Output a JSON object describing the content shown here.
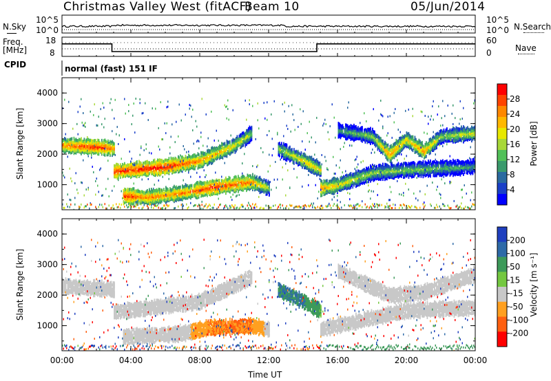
{
  "header": {
    "station": "Christmas Valley West (fitACF)",
    "beam": "Beam 10",
    "date": "05/Jun/2014"
  },
  "nsky_panel": {
    "label": "N.Sky",
    "left_ticks": [
      "10^5",
      "10^0"
    ],
    "right_label": "N.Search",
    "right_ticks": [
      "10^5",
      "10^0"
    ]
  },
  "freq_panel": {
    "label_line1": "Freq.",
    "label_line2": "[MHz]",
    "left_ticks": [
      "18",
      "8"
    ],
    "right_label": "Nave",
    "right_ticks": [
      "60",
      "0"
    ]
  },
  "cpid": {
    "label": "CPID",
    "value": "normal (fast) 151 IF"
  },
  "x_axis": {
    "title": "Time UT",
    "ticks": [
      "00:00",
      "04:00",
      "08:00",
      "12:00",
      "16:00",
      "20:00",
      "00:00"
    ],
    "tick_hours": [
      0,
      4,
      8,
      12,
      16,
      20,
      24
    ]
  },
  "power_panel": {
    "ylabel": "Slant Range [km]",
    "yticks": [
      "1000",
      "2000",
      "3000",
      "4000"
    ],
    "ytick_values": [
      1000,
      2000,
      3000,
      4000
    ],
    "colorbar_label": "Power [dB]",
    "colorbar_ticks": [
      "28",
      "24",
      "20",
      "16",
      "12",
      "8",
      "4"
    ],
    "colorbar_colors": [
      "#ff0000",
      "#ff4400",
      "#ff8800",
      "#ffb800",
      "#e8e800",
      "#a8d838",
      "#52c058",
      "#3a9a6c",
      "#2a6aa0",
      "#1a40c8",
      "#0000ff"
    ]
  },
  "velocity_panel": {
    "ylabel": "Slant Range [km]",
    "yticks": [
      "1000",
      "2000",
      "3000",
      "4000"
    ],
    "ytick_values": [
      1000,
      2000,
      3000,
      4000
    ],
    "colorbar_label": "Velocity [m s⁻¹]",
    "colorbar_ticks": [
      "200",
      "100",
      "50",
      "15",
      "-15",
      "-50",
      "-100",
      "-200"
    ],
    "colorbar_colors": [
      "#1f3fbf",
      "#2e6aa8",
      "#3d9a5a",
      "#74c840",
      "#c8c8c8",
      "#ffa020",
      "#ff6010",
      "#ff0000"
    ]
  },
  "chart_data": {
    "type": "heatmap",
    "x_range_hours": [
      0,
      24
    ],
    "y_range_km": [
      180,
      4500
    ],
    "freq_mhz": [
      [
        0,
        14.5
      ],
      [
        2.9,
        14.5
      ],
      [
        2.9,
        10.5
      ],
      [
        14.8,
        10.5
      ],
      [
        14.8,
        14.5
      ],
      [
        24,
        14.5
      ]
    ],
    "power_bands": [
      {
        "name": "band_a",
        "points": [
          [
            0,
            2300,
            24
          ],
          [
            2,
            2250,
            28
          ],
          [
            3,
            2200,
            24
          ]
        ]
      },
      {
        "name": "band_b",
        "points": [
          [
            3,
            1450,
            28
          ],
          [
            6,
            1600,
            28
          ],
          [
            8,
            1800,
            24
          ],
          [
            10,
            2300,
            20
          ],
          [
            11,
            2700,
            16
          ]
        ]
      },
      {
        "name": "band_c",
        "points": [
          [
            3.5,
            650,
            28
          ],
          [
            5,
            600,
            24
          ],
          [
            7,
            750,
            24
          ],
          [
            9,
            950,
            28
          ],
          [
            11,
            1100,
            24
          ],
          [
            12,
            900,
            16
          ]
        ]
      },
      {
        "name": "band_d",
        "points": [
          [
            12.5,
            2200,
            16
          ],
          [
            14,
            1800,
            20
          ],
          [
            15,
            1500,
            20
          ]
        ]
      },
      {
        "name": "band_e",
        "points": [
          [
            15,
            900,
            24
          ],
          [
            16,
            1000,
            20
          ],
          [
            18,
            1400,
            16
          ],
          [
            20,
            1500,
            16
          ],
          [
            24,
            1600,
            12
          ]
        ]
      },
      {
        "name": "band_f",
        "points": [
          [
            16,
            2800,
            12
          ],
          [
            18,
            2600,
            16
          ],
          [
            19,
            2000,
            24
          ],
          [
            20,
            2500,
            20
          ],
          [
            21,
            2100,
            24
          ],
          [
            22,
            2600,
            16
          ],
          [
            24,
            2700,
            20
          ]
        ]
      }
    ],
    "velocity_bands": [
      {
        "name": "band_a",
        "points": [
          [
            0,
            2300,
            0
          ],
          [
            3,
            2200,
            0
          ]
        ]
      },
      {
        "name": "band_b",
        "points": [
          [
            3,
            1450,
            0
          ],
          [
            8,
            1800,
            0
          ],
          [
            11,
            2600,
            0
          ]
        ]
      },
      {
        "name": "band_c",
        "points": [
          [
            3.5,
            650,
            0
          ],
          [
            7,
            750,
            0
          ],
          [
            8.5,
            950,
            -50
          ],
          [
            11,
            1000,
            -50
          ],
          [
            12,
            900,
            0
          ]
        ]
      },
      {
        "name": "band_d",
        "points": [
          [
            12.5,
            2200,
            50
          ],
          [
            14,
            1800,
            50
          ],
          [
            15,
            1500,
            15
          ]
        ]
      },
      {
        "name": "band_e",
        "points": [
          [
            15,
            900,
            0
          ],
          [
            20,
            1500,
            0
          ],
          [
            24,
            1600,
            0
          ]
        ]
      },
      {
        "name": "band_f",
        "points": [
          [
            16,
            2800,
            0
          ],
          [
            19,
            2000,
            0
          ],
          [
            21,
            2100,
            0
          ],
          [
            24,
            2700,
            0
          ]
        ]
      }
    ]
  }
}
